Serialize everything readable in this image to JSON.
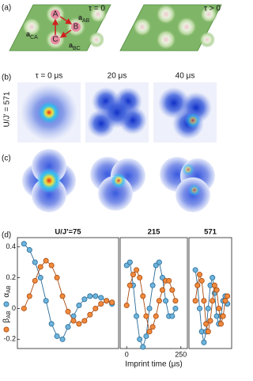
{
  "panel_labels": [
    "(a)",
    "(b)",
    "(c)",
    "(d)"
  ],
  "lattice": {
    "labels": [
      "τ = 0",
      "τ > 0"
    ],
    "sites": [
      "A",
      "B",
      "C"
    ],
    "vectors": [
      "a_AB",
      "a_CA",
      "a_BC"
    ]
  },
  "images": {
    "row_label": "U/J' = 571",
    "times": [
      "τ = 0 μs",
      "20 μs",
      "40 μs"
    ]
  },
  "chart_data": [
    {
      "type": "line",
      "title": "U/J'=75",
      "x": [
        0,
        25,
        50,
        75,
        100,
        125,
        150,
        175,
        200,
        225,
        250,
        275,
        300,
        325,
        350,
        375,
        400
      ],
      "xlim": [
        -30,
        430
      ],
      "ylim": [
        -0.26,
        0.46
      ],
      "yticks": [
        -0.2,
        0,
        0.2,
        0.4
      ],
      "series": [
        {
          "name": "α_AB",
          "color": "#6cb4dc",
          "values": [
            0.42,
            0.38,
            0.3,
            0.2,
            0.05,
            -0.1,
            -0.18,
            -0.2,
            -0.12,
            -0.05,
            0.02,
            0.06,
            0.08,
            0.08,
            0.07,
            0.05,
            0.03
          ]
        },
        {
          "name": "β_AB",
          "color": "#f08a3c",
          "values": [
            0.0,
            0.08,
            0.18,
            0.27,
            0.31,
            0.28,
            0.2,
            0.08,
            -0.02,
            -0.08,
            -0.1,
            -0.08,
            -0.04,
            0.0,
            0.03,
            0.05,
            0.04
          ]
        }
      ]
    },
    {
      "type": "line",
      "title": "215",
      "xlabel": "Imprint time (μs)",
      "x": [
        0,
        15,
        30,
        45,
        60,
        75,
        90,
        105,
        120,
        135,
        150,
        165,
        180,
        195,
        210,
        225
      ],
      "xlim": [
        -30,
        280
      ],
      "ylim": [
        -0.26,
        0.46
      ],
      "xticks": [
        0,
        250
      ],
      "series": [
        {
          "color": "#6cb4dc",
          "values": [
            0.28,
            0.3,
            0.15,
            -0.05,
            -0.2,
            -0.25,
            -0.18,
            0.0,
            0.15,
            0.28,
            0.3,
            0.2,
            0.05,
            -0.05,
            -0.05,
            0.0
          ]
        },
        {
          "color": "#f08a3c",
          "values": [
            0.02,
            0.15,
            0.22,
            0.25,
            0.2,
            0.08,
            -0.05,
            -0.15,
            -0.12,
            -0.05,
            0.05,
            0.12,
            0.18,
            0.18,
            0.12,
            0.05
          ]
        }
      ]
    },
    {
      "type": "line",
      "title": "571",
      "x": [
        0,
        10,
        20,
        30,
        40,
        50,
        60,
        70,
        80,
        90,
        100,
        110,
        120,
        130,
        140,
        150
      ],
      "xlim": [
        -30,
        170
      ],
      "ylim": [
        -0.26,
        0.46
      ],
      "series": [
        {
          "color": "#6cb4dc",
          "values": [
            0.25,
            0.15,
            0.0,
            -0.15,
            -0.22,
            -0.15,
            0.0,
            0.15,
            0.2,
            0.1,
            -0.05,
            -0.1,
            -0.05,
            0.05,
            0.08,
            0.03
          ]
        },
        {
          "color": "#f08a3c",
          "values": [
            0.05,
            0.15,
            0.22,
            0.18,
            0.05,
            -0.1,
            -0.15,
            -0.08,
            0.05,
            0.15,
            0.12,
            0.0,
            -0.1,
            -0.05,
            0.05,
            0.08
          ]
        }
      ]
    }
  ]
}
